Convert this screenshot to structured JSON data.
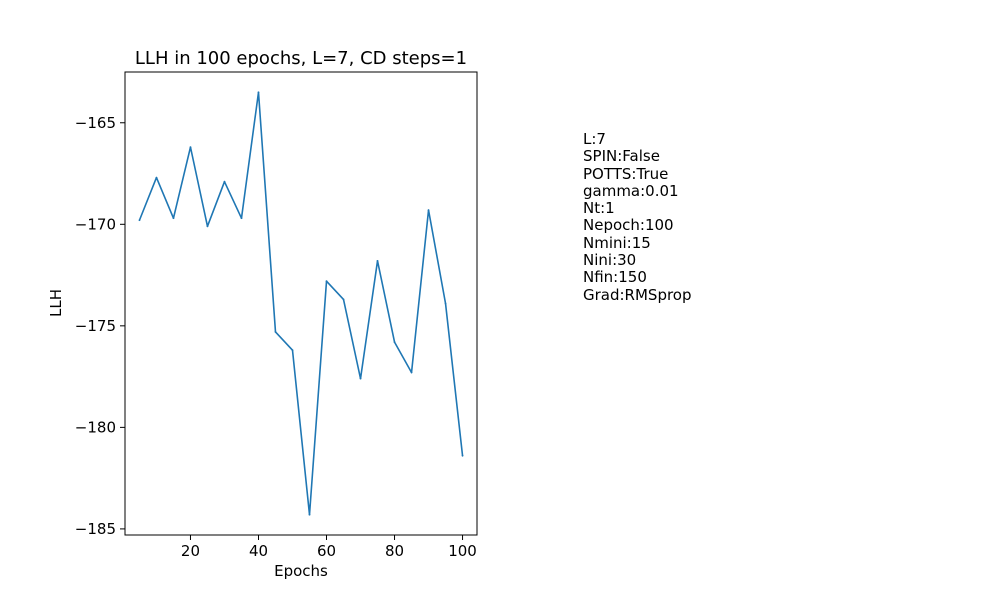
{
  "chart_data": {
    "type": "line",
    "title": "LLH in 100 epochs, L=7, CD steps=1",
    "xlabel": "Epochs",
    "ylabel": "LLH",
    "xlim": [
      0.75,
      104.25
    ],
    "ylim": [
      -185.3,
      -162.5
    ],
    "xticks": [
      20,
      40,
      60,
      80,
      100
    ],
    "yticks": [
      -165,
      -170,
      -175,
      -180,
      -185
    ],
    "xtick_labels": [
      "20",
      "40",
      "60",
      "80",
      "100"
    ],
    "ytick_labels": [
      "−165",
      "−170",
      "−175",
      "−180",
      "−185"
    ],
    "grid": false,
    "series": [
      {
        "color": "#1f77b4",
        "x": [
          5,
          10,
          15,
          20,
          25,
          30,
          35,
          40,
          45,
          50,
          55,
          60,
          65,
          70,
          75,
          80,
          85,
          90,
          95,
          100
        ],
        "y": [
          -169.8,
          -167.7,
          -169.7,
          -166.2,
          -170.1,
          -167.9,
          -169.7,
          -163.5,
          -175.3,
          -176.2,
          -184.3,
          -172.8,
          -173.7,
          -177.6,
          -171.8,
          -175.8,
          -177.3,
          -169.3,
          -173.9,
          -181.4
        ]
      }
    ]
  },
  "params_text": [
    "L:7",
    "SPIN:False",
    "POTTS:True",
    "gamma:0.01",
    "Nt:1",
    "Nepoch:100",
    "Nmini:15",
    "Nini:30",
    "Nfin:150",
    "Grad:RMSprop"
  ]
}
